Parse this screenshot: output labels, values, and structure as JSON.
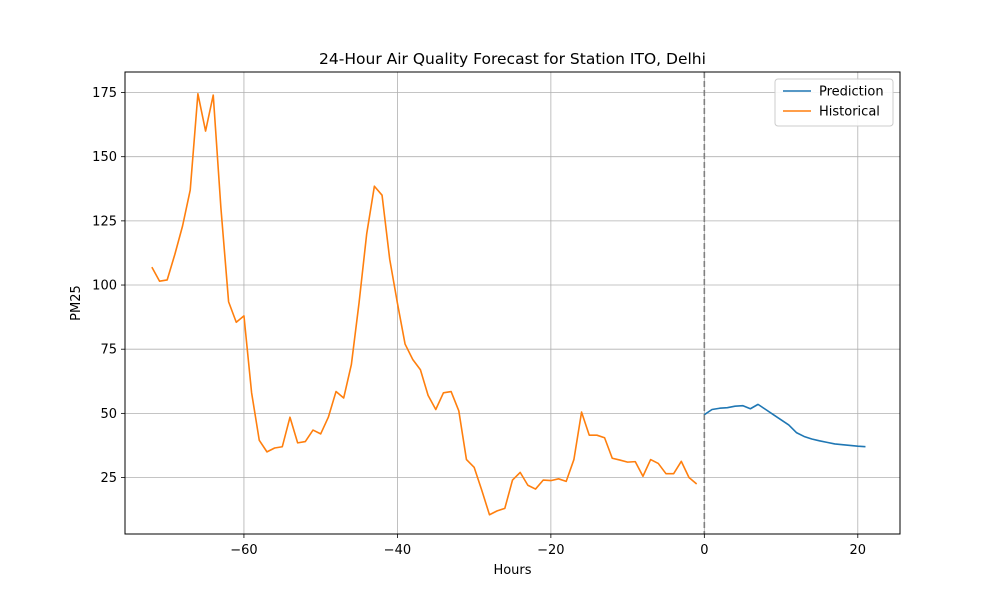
{
  "chart_data": {
    "type": "line",
    "title": "24-Hour Air Quality Forecast for Station ITO, Delhi",
    "xlabel": "Hours",
    "ylabel": "PM25",
    "xlim": [
      -75.5,
      25.5
    ],
    "ylim": [
      3,
      183
    ],
    "x_ticks": [
      -60,
      -40,
      -20,
      0,
      20
    ],
    "x_tick_labels": [
      "−60",
      "−40",
      "−20",
      "0",
      "20"
    ],
    "y_ticks": [
      25,
      50,
      75,
      100,
      125,
      150,
      175
    ],
    "y_tick_labels": [
      "25",
      "50",
      "75",
      "100",
      "125",
      "150",
      "175"
    ],
    "grid": true,
    "legend_position": "top-right",
    "reference_line": {
      "x": 0,
      "style": "dashed",
      "color": "#808080"
    },
    "series": [
      {
        "name": "Prediction",
        "color": "#1f77b4",
        "x": [
          0,
          1,
          2,
          3,
          4,
          5,
          6,
          7,
          8,
          9,
          10,
          11,
          12,
          13,
          14,
          15,
          16,
          17,
          18,
          19,
          20,
          21
        ],
        "y": [
          49.5,
          51.5,
          52.0,
          52.2,
          52.8,
          53.0,
          51.8,
          53.5,
          51.5,
          49.5,
          47.5,
          45.5,
          42.5,
          41.0,
          40.0,
          39.3,
          38.7,
          38.1,
          37.8,
          37.5,
          37.2,
          37.0
        ]
      },
      {
        "name": "Historical",
        "color": "#ff7f0e",
        "x": [
          -72,
          -71,
          -70,
          -69,
          -68,
          -67,
          -66,
          -65,
          -64,
          -63,
          -62,
          -61,
          -60,
          -59,
          -58,
          -57,
          -56,
          -55,
          -54,
          -53,
          -52,
          -51,
          -50,
          -49,
          -48,
          -47,
          -46,
          -45,
          -44,
          -43,
          -42,
          -41,
          -40,
          -39,
          -38,
          -37,
          -36,
          -35,
          -34,
          -33,
          -32,
          -31,
          -30,
          -29,
          -28,
          -27,
          -26,
          -25,
          -24,
          -23,
          -22,
          -21,
          -20,
          -19,
          -18,
          -17,
          -16,
          -15,
          -14,
          -13,
          -12,
          -11,
          -10,
          -9,
          -8,
          -7,
          -6,
          -5,
          -4,
          -3,
          -2,
          -1
        ],
        "y": [
          107,
          101.5,
          102,
          112,
          123,
          137,
          174.5,
          160,
          174,
          130,
          93.5,
          85.5,
          88,
          58,
          39.5,
          35,
          36.5,
          37,
          48.5,
          38.5,
          39,
          43.5,
          42,
          48.5,
          58.5,
          56,
          69,
          93,
          120,
          138.5,
          135,
          110,
          93,
          77,
          71,
          67,
          57,
          51.5,
          58,
          58.5,
          51,
          32,
          29,
          20,
          10.5,
          12,
          13,
          24,
          27,
          22,
          20.5,
          24,
          23.8,
          24.5,
          23.5,
          32,
          50.5,
          41.5,
          41.5,
          40.5,
          32.5,
          31.8,
          31,
          31.2,
          25.5,
          32,
          30.5,
          26.5,
          26.5,
          31.3,
          25,
          22.5
        ]
      }
    ]
  }
}
